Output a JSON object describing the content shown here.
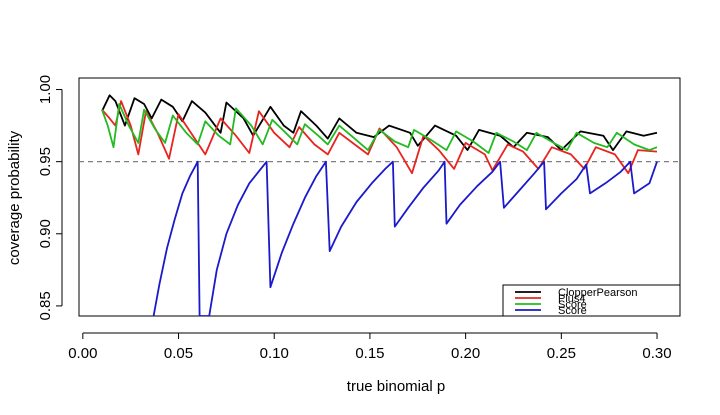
{
  "chart_data": {
    "type": "line",
    "xlabel": "true binomial p",
    "ylabel": "coverage probability",
    "xlim": [
      -0.002,
      0.312
    ],
    "ylim": [
      0.843,
      1.008
    ],
    "x_ticks": [
      {
        "value": 0.0,
        "label": "0.00"
      },
      {
        "value": 0.05,
        "label": "0.05"
      },
      {
        "value": 0.1,
        "label": "0.10"
      },
      {
        "value": 0.15,
        "label": "0.15"
      },
      {
        "value": 0.2,
        "label": "0.20"
      },
      {
        "value": 0.25,
        "label": "0.25"
      },
      {
        "value": 0.3,
        "label": "0.30"
      }
    ],
    "y_ticks": [
      {
        "value": 0.85,
        "label": "0.85"
      },
      {
        "value": 0.9,
        "label": "0.90"
      },
      {
        "value": 0.95,
        "label": "0.95"
      },
      {
        "value": 1.0,
        "label": "1.00"
      }
    ],
    "reference_line": {
      "y": 0.95,
      "style": "dashed",
      "color": "#808080"
    },
    "grid": false,
    "legend_position": "bottom-right",
    "series": [
      {
        "name": "ClopperPearson",
        "color": "#000000",
        "points": [
          [
            0.01,
            0.985
          ],
          [
            0.014,
            0.996
          ],
          [
            0.017,
            0.992
          ],
          [
            0.022,
            0.975
          ],
          [
            0.027,
            0.994
          ],
          [
            0.032,
            0.99
          ],
          [
            0.036,
            0.98
          ],
          [
            0.041,
            0.993
          ],
          [
            0.047,
            0.988
          ],
          [
            0.052,
            0.978
          ],
          [
            0.057,
            0.992
          ],
          [
            0.064,
            0.984
          ],
          [
            0.072,
            0.97
          ],
          [
            0.075,
            0.991
          ],
          [
            0.084,
            0.98
          ],
          [
            0.089,
            0.968
          ],
          [
            0.098,
            0.988
          ],
          [
            0.105,
            0.975
          ],
          [
            0.11,
            0.97
          ],
          [
            0.114,
            0.985
          ],
          [
            0.122,
            0.975
          ],
          [
            0.128,
            0.966
          ],
          [
            0.134,
            0.98
          ],
          [
            0.143,
            0.97
          ],
          [
            0.152,
            0.967
          ],
          [
            0.16,
            0.975
          ],
          [
            0.171,
            0.97
          ],
          [
            0.175,
            0.961
          ],
          [
            0.184,
            0.975
          ],
          [
            0.195,
            0.968
          ],
          [
            0.201,
            0.958
          ],
          [
            0.207,
            0.972
          ],
          [
            0.218,
            0.968
          ],
          [
            0.225,
            0.96
          ],
          [
            0.232,
            0.97
          ],
          [
            0.243,
            0.967
          ],
          [
            0.25,
            0.958
          ],
          [
            0.26,
            0.971
          ],
          [
            0.272,
            0.968
          ],
          [
            0.277,
            0.958
          ],
          [
            0.284,
            0.971
          ],
          [
            0.293,
            0.968
          ],
          [
            0.3,
            0.97
          ]
        ]
      },
      {
        "name": "Plus4",
        "color": "#e8241f",
        "points": [
          [
            0.01,
            0.986
          ],
          [
            0.014,
            0.98
          ],
          [
            0.017,
            0.975
          ],
          [
            0.02,
            0.992
          ],
          [
            0.025,
            0.975
          ],
          [
            0.029,
            0.955
          ],
          [
            0.033,
            0.985
          ],
          [
            0.039,
            0.97
          ],
          [
            0.045,
            0.952
          ],
          [
            0.05,
            0.983
          ],
          [
            0.058,
            0.967
          ],
          [
            0.064,
            0.955
          ],
          [
            0.072,
            0.98
          ],
          [
            0.08,
            0.968
          ],
          [
            0.087,
            0.956
          ],
          [
            0.092,
            0.985
          ],
          [
            0.1,
            0.97
          ],
          [
            0.108,
            0.96
          ],
          [
            0.113,
            0.974
          ],
          [
            0.121,
            0.962
          ],
          [
            0.128,
            0.955
          ],
          [
            0.134,
            0.97
          ],
          [
            0.142,
            0.962
          ],
          [
            0.149,
            0.955
          ],
          [
            0.155,
            0.973
          ],
          [
            0.164,
            0.96
          ],
          [
            0.172,
            0.942
          ],
          [
            0.178,
            0.968
          ],
          [
            0.186,
            0.958
          ],
          [
            0.194,
            0.945
          ],
          [
            0.2,
            0.963
          ],
          [
            0.21,
            0.955
          ],
          [
            0.214,
            0.944
          ],
          [
            0.222,
            0.962
          ],
          [
            0.23,
            0.957
          ],
          [
            0.238,
            0.945
          ],
          [
            0.245,
            0.96
          ],
          [
            0.255,
            0.955
          ],
          [
            0.262,
            0.945
          ],
          [
            0.268,
            0.96
          ],
          [
            0.278,
            0.955
          ],
          [
            0.285,
            0.942
          ],
          [
            0.29,
            0.958
          ],
          [
            0.3,
            0.957
          ]
        ]
      },
      {
        "name": "Score",
        "color": "#22bb22",
        "points": [
          [
            0.01,
            0.986
          ],
          [
            0.013,
            0.975
          ],
          [
            0.016,
            0.96
          ],
          [
            0.019,
            0.99
          ],
          [
            0.024,
            0.975
          ],
          [
            0.029,
            0.963
          ],
          [
            0.032,
            0.986
          ],
          [
            0.038,
            0.972
          ],
          [
            0.043,
            0.963
          ],
          [
            0.047,
            0.982
          ],
          [
            0.054,
            0.97
          ],
          [
            0.06,
            0.962
          ],
          [
            0.064,
            0.978
          ],
          [
            0.071,
            0.968
          ],
          [
            0.077,
            0.962
          ],
          [
            0.08,
            0.987
          ],
          [
            0.088,
            0.975
          ],
          [
            0.094,
            0.962
          ],
          [
            0.099,
            0.979
          ],
          [
            0.106,
            0.97
          ],
          [
            0.112,
            0.962
          ],
          [
            0.116,
            0.976
          ],
          [
            0.123,
            0.968
          ],
          [
            0.128,
            0.962
          ],
          [
            0.134,
            0.975
          ],
          [
            0.142,
            0.966
          ],
          [
            0.149,
            0.958
          ],
          [
            0.155,
            0.972
          ],
          [
            0.163,
            0.964
          ],
          [
            0.17,
            0.96
          ],
          [
            0.173,
            0.972
          ],
          [
            0.182,
            0.965
          ],
          [
            0.19,
            0.958
          ],
          [
            0.195,
            0.971
          ],
          [
            0.204,
            0.964
          ],
          [
            0.212,
            0.956
          ],
          [
            0.216,
            0.97
          ],
          [
            0.225,
            0.964
          ],
          [
            0.232,
            0.958
          ],
          [
            0.237,
            0.97
          ],
          [
            0.246,
            0.963
          ],
          [
            0.253,
            0.958
          ],
          [
            0.258,
            0.97
          ],
          [
            0.267,
            0.963
          ],
          [
            0.274,
            0.96
          ],
          [
            0.279,
            0.97
          ],
          [
            0.288,
            0.962
          ],
          [
            0.296,
            0.958
          ],
          [
            0.3,
            0.96
          ]
        ]
      },
      {
        "name": "Score",
        "color": "#1a1acc",
        "points": [
          [
            0.037,
            0.843
          ],
          [
            0.04,
            0.865
          ],
          [
            0.044,
            0.89
          ],
          [
            0.048,
            0.91
          ],
          [
            0.052,
            0.928
          ],
          [
            0.056,
            0.94
          ],
          [
            0.06,
            0.95
          ],
          [
            0.061,
            0.843
          ],
          [
            0.066,
            0.843
          ],
          [
            0.07,
            0.875
          ],
          [
            0.075,
            0.9
          ],
          [
            0.081,
            0.92
          ],
          [
            0.087,
            0.935
          ],
          [
            0.093,
            0.945
          ],
          [
            0.096,
            0.95
          ],
          [
            0.098,
            0.863
          ],
          [
            0.104,
            0.887
          ],
          [
            0.11,
            0.907
          ],
          [
            0.116,
            0.925
          ],
          [
            0.122,
            0.94
          ],
          [
            0.127,
            0.95
          ],
          [
            0.129,
            0.888
          ],
          [
            0.135,
            0.905
          ],
          [
            0.143,
            0.922
          ],
          [
            0.151,
            0.935
          ],
          [
            0.158,
            0.945
          ],
          [
            0.162,
            0.95
          ],
          [
            0.163,
            0.905
          ],
          [
            0.17,
            0.918
          ],
          [
            0.178,
            0.932
          ],
          [
            0.186,
            0.944
          ],
          [
            0.189,
            0.95
          ],
          [
            0.19,
            0.907
          ],
          [
            0.197,
            0.92
          ],
          [
            0.206,
            0.933
          ],
          [
            0.214,
            0.943
          ],
          [
            0.218,
            0.95
          ],
          [
            0.22,
            0.918
          ],
          [
            0.228,
            0.93
          ],
          [
            0.236,
            0.942
          ],
          [
            0.241,
            0.95
          ],
          [
            0.242,
            0.917
          ],
          [
            0.25,
            0.928
          ],
          [
            0.258,
            0.938
          ],
          [
            0.263,
            0.948
          ],
          [
            0.265,
            0.928
          ],
          [
            0.273,
            0.935
          ],
          [
            0.281,
            0.943
          ],
          [
            0.286,
            0.95
          ],
          [
            0.288,
            0.928
          ],
          [
            0.296,
            0.935
          ],
          [
            0.3,
            0.95
          ]
        ]
      }
    ]
  }
}
